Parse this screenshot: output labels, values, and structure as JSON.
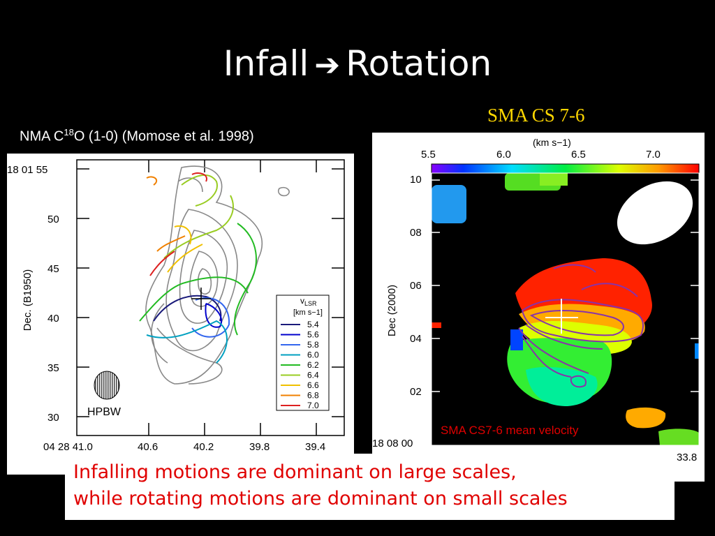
{
  "slide": {
    "title_left": "Infall",
    "title_right": "Rotation",
    "arrow_icon": "right-arrow-icon"
  },
  "left_figure": {
    "label_main": "NMA C",
    "label_sup": "18",
    "label_rest": "O (1-0) (Momose et al. 1998)",
    "y_axis_label": "Dec. (B1950)",
    "y_ticks": [
      "18 01 55",
      "50",
      "45",
      "40",
      "35",
      "30"
    ],
    "x_ticks": [
      "04 28 41.0",
      "40.6",
      "40.2",
      "39.8",
      "39.4"
    ],
    "beam_label": "HPBW",
    "legend": {
      "title_main": "v",
      "title_sub": "LSR",
      "unit": "[km s−1]",
      "entries": [
        "5.4",
        "5.6",
        "5.8",
        "6.0",
        "6.2",
        "6.4",
        "6.6",
        "6.8",
        "7.0"
      ],
      "colors": [
        "#1a1a7a",
        "#0000cc",
        "#3366ee",
        "#00a0c0",
        "#22bb22",
        "#99cc22",
        "#f0c000",
        "#f08000",
        "#dd2020"
      ]
    }
  },
  "right_figure": {
    "label": "SMA CS 7-6",
    "colorbar_unit": "(km s−1)",
    "colorbar_ticks": [
      "5.5",
      "6.0",
      "6.5",
      "7.0"
    ],
    "y_axis_label": "Dec (2000)",
    "y_ticks": [
      "10",
      "08",
      "06",
      "04",
      "02"
    ],
    "x_tick_left": "18 08 00",
    "x_tick_right": "33.8",
    "panel_note": "SMA CS7-6 mean velocity",
    "label_color": "#ffd700",
    "note_color": "#e00000"
  },
  "caption": {
    "line1": "Infalling motions are dominant on large scales,",
    "line2": "while rotating motions are dominant on small scales"
  }
}
